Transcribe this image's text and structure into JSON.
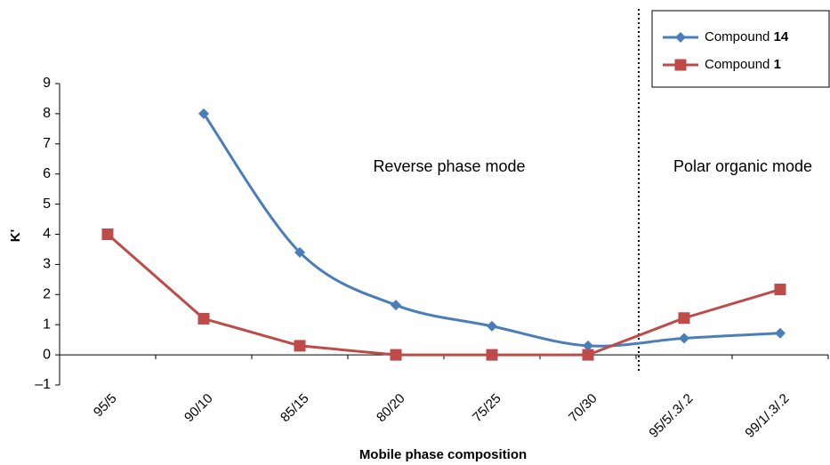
{
  "chart_data": {
    "type": "line",
    "x_label": "Mobile phase composition",
    "y_label": "K'",
    "categories": [
      "95/5",
      "90/10",
      "85/15",
      "80/20",
      "75/25",
      "70/30",
      "95/5/.3/.2",
      "99/1/.3/.2"
    ],
    "series": [
      {
        "name": "Compound 14",
        "color": "#4a7ebb",
        "marker": "diamond",
        "smooth": true,
        "values": [
          null,
          8,
          3.4,
          1.65,
          0.95,
          0.3,
          0.55,
          0.72
        ]
      },
      {
        "name": "Compound 1",
        "color": "#be4b48",
        "marker": "square",
        "smooth": false,
        "values": [
          4,
          1.2,
          0.3,
          0,
          0,
          0,
          1.22,
          2.17
        ]
      }
    ],
    "ylim": [
      -1,
      9
    ],
    "yticks": [
      {
        "value": -1,
        "label": "–1"
      },
      0,
      1,
      2,
      3,
      4,
      5,
      6,
      7,
      8,
      9
    ],
    "grid": false,
    "legend": "top-right",
    "annotations": [
      "Reverse phase mode",
      "Polar organic mode"
    ]
  }
}
